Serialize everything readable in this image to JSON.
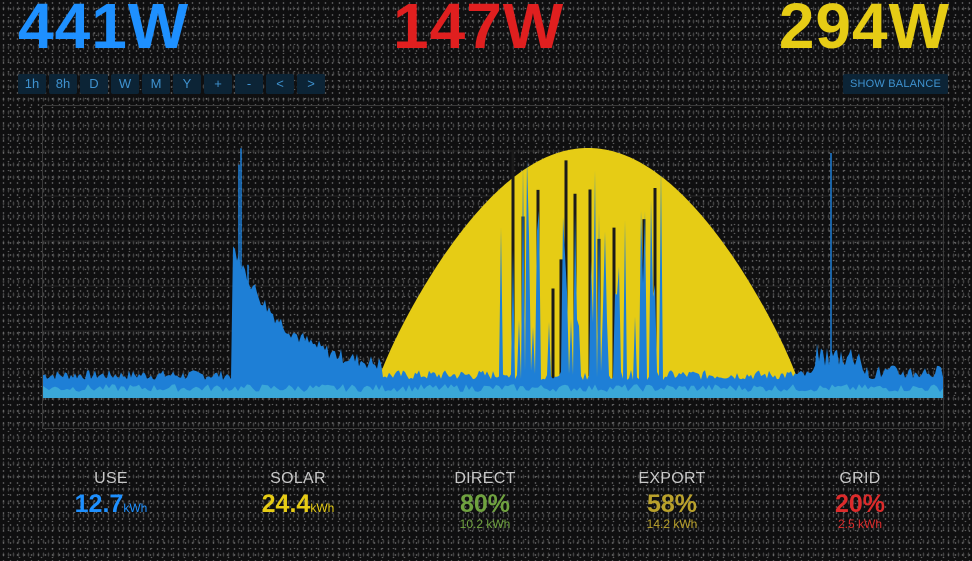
{
  "header": {
    "use_power": "441W",
    "export_power": "147W",
    "solar_power": "294W"
  },
  "toolbar": {
    "buttons": [
      "1h",
      "8h",
      "D",
      "W",
      "M",
      "Y",
      "+",
      "-",
      "<",
      ">"
    ],
    "show_balance": "SHOW BALANCE"
  },
  "colors": {
    "use": "#1e90ff",
    "export": "#e01f1f",
    "solar": "#e6cc15",
    "direct": "#6fa23f",
    "grid": "#dd2b2b",
    "base_use": "#3aa7d8"
  },
  "stats": {
    "use": {
      "label": "USE",
      "value": "12.7",
      "unit": "kWh"
    },
    "solar": {
      "label": "SOLAR",
      "value": "24.4",
      "unit": "kWh"
    },
    "direct": {
      "label": "DIRECT",
      "value": "80%",
      "sub": "10.2 kWh"
    },
    "export": {
      "label": "EXPORT",
      "value": "58%",
      "sub": "14.2 kWh"
    },
    "grid": {
      "label": "GRID",
      "value": "20%",
      "sub": "2.5 kWh"
    }
  }
}
